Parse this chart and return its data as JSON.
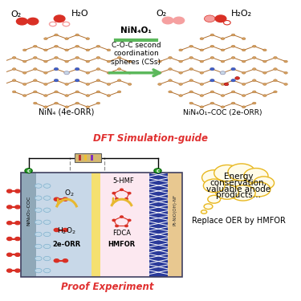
{
  "title_top": "DFT Simulation-guide",
  "title_bottom": "Proof Experiment",
  "arrow_text_line1": "NiN₄O₁",
  "arrow_text_line2": "C-O-C second",
  "arrow_text_line3": "coordination",
  "arrow_text_line4": "spheres (CSs)",
  "label_left": "NiN₄ (4e-ORR)",
  "label_right": "NiN₄O₁–COC (2e-ORR)",
  "o2_label_left": "O₂",
  "h2o_label": "H₂O",
  "o2_label_right": "O₂",
  "h2o2_label": "H₂O₂",
  "cloud_text_line1": "Energy",
  "cloud_text_line2": "conservation,",
  "cloud_text_line3": "valuable anode",
  "cloud_text_line4": "products…",
  "replace_text": "Replace OER by HMFOR",
  "bg_top": "#ddeeff",
  "bg_bottom": "#ddeeff",
  "red_color": "#d93025",
  "pink_color": "#f5a0a0",
  "brown_color": "#c08040",
  "blue_n_color": "#4060cc",
  "ni_color": "#c8d8e8",
  "green_arrow": "#5cb85c",
  "gold_color": "#e8b830",
  "navy_color": "#2233aa",
  "bond_color": "#b07030",
  "c_atom_color": "#d4a060",
  "cathode_bg": "#c8d8e8",
  "membrane_color": "#f5e070",
  "anode_bg": "#fce8f0",
  "electrode_color": "#2a3a9a",
  "sandy_color": "#e8c890"
}
